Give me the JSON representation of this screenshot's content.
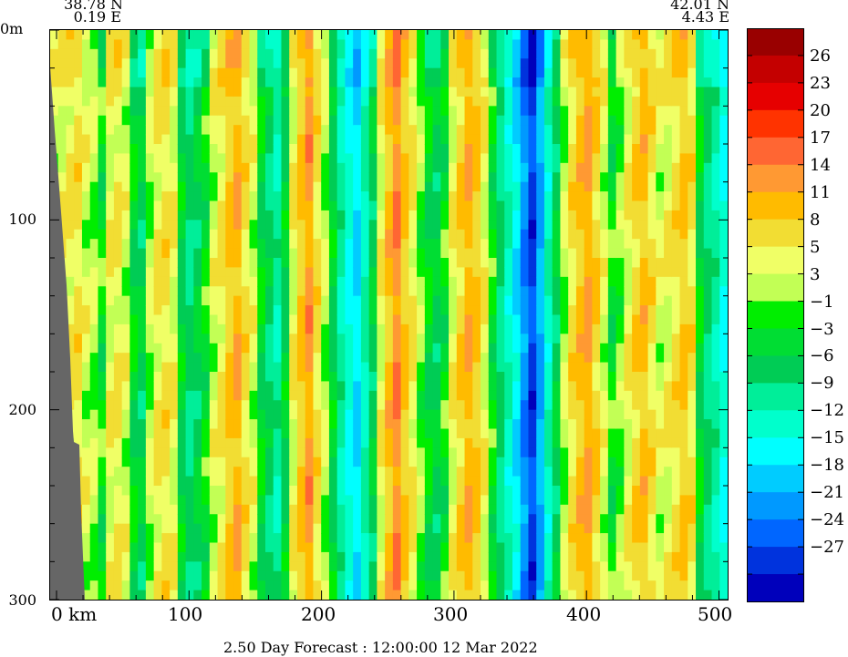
{
  "header": {
    "left_lat": "38.78 N",
    "left_lon": "0.19 E",
    "right_lat": "42.01 N",
    "right_lon": "4.43 E"
  },
  "footer": {
    "forecast": "2.50 Day Forecast : 12:00:00  12 Mar 2022"
  },
  "chart_data": {
    "type": "heatmap",
    "xlabel": "km",
    "x_ticks": [
      0,
      100,
      200,
      300,
      400,
      500
    ],
    "x_tick_labels": [
      "0  km",
      "100",
      "200",
      "300",
      "400",
      "500"
    ],
    "xlim": [
      0,
      510
    ],
    "y_ticks": [
      0,
      100,
      200,
      300
    ],
    "y_tick_labels": [
      "0m",
      "100",
      "200",
      "300"
    ],
    "ylim": [
      300,
      0
    ],
    "colorbar": {
      "labels": [
        "26",
        "23",
        "20",
        "17",
        "14",
        "11",
        "8",
        "5",
        "3",
        "−1",
        "−3",
        "−6",
        "−9",
        "−12",
        "−15",
        "−18",
        "−21",
        "−24",
        "−27"
      ],
      "colors": [
        "#990000",
        "#c40000",
        "#e60000",
        "#ff3300",
        "#ff6633",
        "#ff9933",
        "#ffbb00",
        "#f2dd33",
        "#f0ff66",
        "#c2ff55",
        "#00ee00",
        "#00dd33",
        "#00cc55",
        "#00ee99",
        "#00ffcc",
        "#00ffff",
        "#00ccff",
        "#0099ff",
        "#0066ff",
        "#0033dd",
        "#0000bb"
      ]
    },
    "column_values": [
      3,
      4,
      5,
      6,
      3,
      2,
      -1,
      4,
      5,
      3,
      -2,
      -4,
      2,
      5,
      6,
      4,
      -3,
      -6,
      -4,
      -1,
      3,
      5,
      8,
      10,
      6,
      3,
      -2,
      -5,
      -8,
      -3,
      4,
      8,
      12,
      6,
      2,
      -3,
      -8,
      -12,
      -15,
      -9,
      -4,
      4,
      9,
      13,
      8,
      5,
      1,
      -2,
      -4,
      -1,
      4,
      7,
      10,
      8,
      4,
      -1,
      -6,
      -10,
      -14,
      -20,
      -25,
      -18,
      -10,
      -4,
      2,
      6,
      9,
      11,
      7,
      3,
      -1,
      1,
      4,
      7,
      9,
      6,
      3,
      4,
      6,
      8,
      6,
      -2,
      -6,
      -8,
      -12
    ],
    "land_mask": "left edge 0-9 km at surface widening to ~20 km at 300 m",
    "row_modulation": "weak depth variation of column values"
  }
}
